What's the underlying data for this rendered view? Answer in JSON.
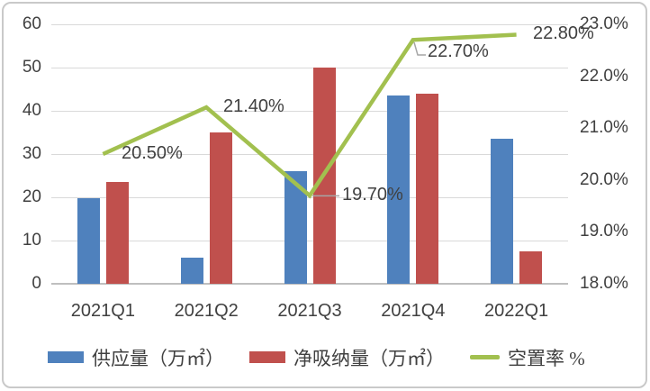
{
  "chart_data": {
    "type": "combo-bar-line",
    "title": "",
    "categories": [
      "2021Q1",
      "2021Q2",
      "2021Q3",
      "2021Q4",
      "2022Q1"
    ],
    "series": [
      {
        "name": "供应量（万㎡）",
        "type": "bar",
        "axis": "left",
        "color": "#4F81BD",
        "values": [
          19.8,
          6,
          26,
          43.5,
          33.5
        ]
      },
      {
        "name": "净吸纳量（万㎡）",
        "type": "bar",
        "axis": "left",
        "color": "#C0504D",
        "values": [
          23.5,
          35,
          50,
          44,
          7.5
        ]
      },
      {
        "name": "空置率 %",
        "type": "line",
        "axis": "right",
        "color": "#A2C04F",
        "values": [
          20.5,
          21.4,
          19.7,
          22.7,
          22.8
        ],
        "data_labels": [
          "20.50%",
          "21.40%",
          "19.70%",
          "22.70%",
          "22.80%"
        ]
      }
    ],
    "axes": {
      "left": {
        "min": 0,
        "max": 60,
        "step": 10,
        "tick_labels": [
          "0",
          "10",
          "20",
          "30",
          "40",
          "50",
          "60"
        ]
      },
      "right": {
        "min": 18,
        "max": 23,
        "step": 1,
        "tick_labels": [
          "18.0%",
          "19.0%",
          "20.0%",
          "21.0%",
          "22.0%",
          "23.0%"
        ]
      }
    },
    "grid": true,
    "legend_position": "bottom"
  },
  "colors": {
    "supply_bar": "#4F81BD",
    "absorption_bar": "#C0504D",
    "vacancy_line": "#A2C04F",
    "gridline": "#D9D9D9",
    "axis_line": "#BFBFBF",
    "text": "#404040",
    "leader_line": "#A6A6A6",
    "frame_border": "#C9C9C9"
  }
}
